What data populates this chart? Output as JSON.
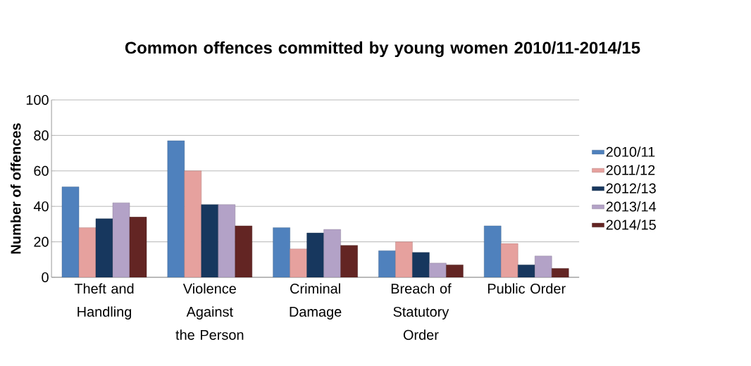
{
  "chart_data": {
    "type": "bar",
    "title": "Common offences committed by young women  2010/11-2014/15",
    "ylabel": "Number of offences",
    "categories": [
      "Theft and Handling",
      "Violence Against the Person",
      "Criminal Damage",
      "Breach of Statutory Order",
      "Public Order"
    ],
    "series": [
      {
        "name": "2010/11",
        "color": "#4f81bd",
        "values": [
          51,
          77,
          28,
          15,
          29
        ]
      },
      {
        "name": "2011/12",
        "color": "#e6a19e",
        "values": [
          28,
          60,
          16,
          20,
          19
        ]
      },
      {
        "name": "2012/13",
        "color": "#17375e",
        "values": [
          33,
          41,
          25,
          14,
          7
        ]
      },
      {
        "name": "2013/14",
        "color": "#b3a2c7",
        "values": [
          42,
          41,
          27,
          8,
          12
        ]
      },
      {
        "name": "2014/15",
        "color": "#632523",
        "values": [
          34,
          29,
          18,
          7,
          5
        ]
      }
    ],
    "ylim": [
      0,
      100
    ],
    "yticks": [
      0,
      20,
      40,
      60,
      80,
      100
    ],
    "grid": "y",
    "legend": "right"
  }
}
